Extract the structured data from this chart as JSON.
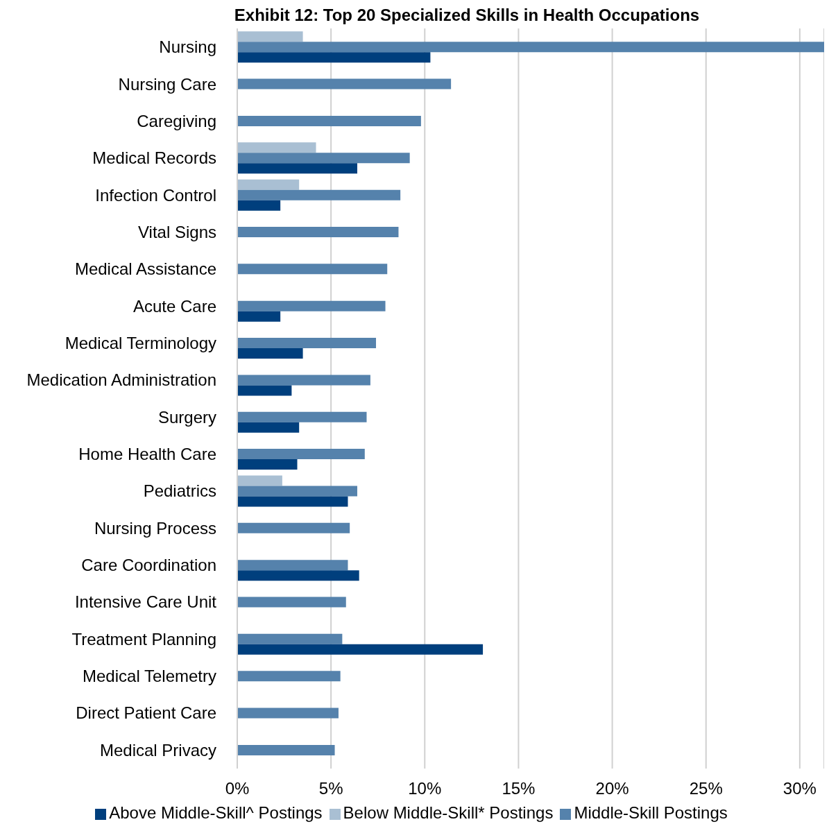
{
  "chart_data": {
    "type": "bar",
    "orientation": "horizontal",
    "title": "Exhibit 12: Top 20 Specialized Skills in Health Occupations",
    "categories": [
      "Nursing",
      "Nursing Care",
      "Caregiving",
      "Medical Records",
      "Infection Control",
      "Vital Signs",
      "Medical Assistance",
      "Acute Care",
      "Medical Terminology",
      "Medication Administration",
      "Surgery",
      "Home Health Care",
      "Pediatrics",
      "Nursing Process",
      "Care Coordination",
      "Intensive Care Unit",
      "Treatment Planning",
      "Medical Telemetry",
      "Direct Patient Care",
      "Medical Privacy"
    ],
    "series": [
      {
        "name": "Below Middle-Skill* Postings",
        "color": "#a9bfd3",
        "values": [
          3.5,
          null,
          null,
          4.2,
          3.3,
          null,
          null,
          null,
          null,
          null,
          null,
          null,
          2.4,
          null,
          null,
          null,
          null,
          null,
          null,
          null
        ]
      },
      {
        "name": "Middle-Skill Postings",
        "color": "#5582ac",
        "values": [
          31.3,
          11.4,
          9.8,
          9.2,
          8.7,
          8.6,
          8.0,
          7.9,
          7.4,
          7.1,
          6.9,
          6.8,
          6.4,
          6.0,
          5.9,
          5.8,
          5.6,
          5.5,
          5.4,
          5.2
        ]
      },
      {
        "name": "Above Middle-Skill^ Postings",
        "color": "#003f7d",
        "values": [
          10.3,
          null,
          null,
          6.4,
          2.3,
          null,
          null,
          2.3,
          3.5,
          2.9,
          3.3,
          3.2,
          5.9,
          null,
          6.5,
          null,
          13.1,
          null,
          null,
          null
        ]
      }
    ],
    "xlim": [
      0,
      31.3
    ],
    "xticks": [
      {
        "value": 0,
        "label": "0%"
      },
      {
        "value": 5,
        "label": "5%"
      },
      {
        "value": 10,
        "label": "10%"
      },
      {
        "value": 15,
        "label": "15%"
      },
      {
        "value": 20,
        "label": "20%"
      },
      {
        "value": 25,
        "label": "25%"
      },
      {
        "value": 30,
        "label": "30%"
      }
    ],
    "grid": "x",
    "legend": "bottom"
  }
}
